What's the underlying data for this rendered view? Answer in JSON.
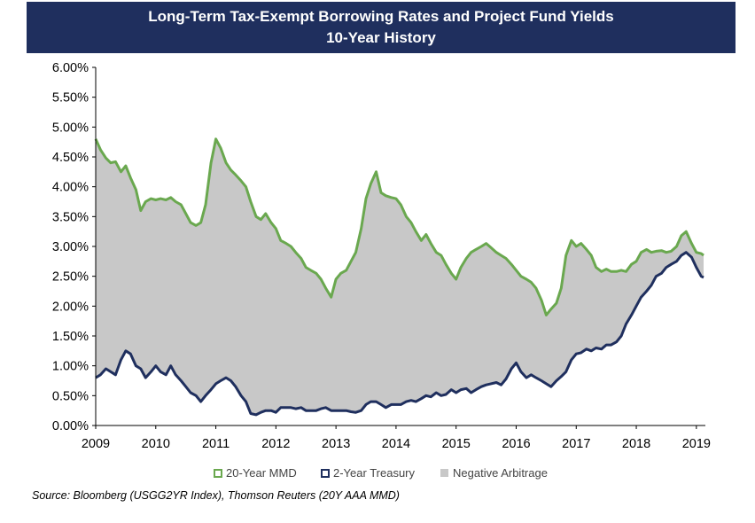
{
  "title_line1": "Long-Term Tax-Exempt Borrowing Rates and Project Fund Yields",
  "title_line2": "10-Year History",
  "source": "Source: Bloomberg (USGG2YR Index), Thomson Reuters (20Y AAA MMD)",
  "colors": {
    "title_bg": "#1f2f5e",
    "mmd": "#6aa84f",
    "treasury": "#1f2f5e",
    "negative_arbitrage": "#c8c8c8"
  },
  "chart_data": {
    "type": "area",
    "title": "Long-Term Tax-Exempt Borrowing Rates and Project Fund Yields",
    "subtitle": "10-Year History",
    "xlabel": "",
    "ylabel": "",
    "xlim": [
      2009.0,
      2019.15
    ],
    "ylim": [
      0,
      0.06
    ],
    "x_ticks": [
      "2009",
      "2010",
      "2011",
      "2012",
      "2013",
      "2014",
      "2015",
      "2016",
      "2017",
      "2018",
      "2019"
    ],
    "y_ticks": [
      "0.00%",
      "0.50%",
      "1.00%",
      "1.50%",
      "2.00%",
      "2.50%",
      "3.00%",
      "3.50%",
      "4.00%",
      "4.50%",
      "5.00%",
      "5.50%",
      "6.00%"
    ],
    "legend_position": "bottom",
    "grid": false,
    "legend": [
      {
        "name": "20-Year MMD",
        "color": "#6aa84f",
        "style": "outline"
      },
      {
        "name": "2-Year Treasury",
        "color": "#1f2f5e",
        "style": "outline"
      },
      {
        "name": "Negative Arbitrage",
        "color": "#c8c8c8",
        "style": "fill"
      }
    ],
    "x": [
      2009.0,
      2009.08,
      2009.17,
      2009.25,
      2009.33,
      2009.42,
      2009.5,
      2009.58,
      2009.67,
      2009.75,
      2009.83,
      2009.92,
      2010.0,
      2010.08,
      2010.17,
      2010.25,
      2010.33,
      2010.42,
      2010.5,
      2010.58,
      2010.67,
      2010.75,
      2010.83,
      2010.92,
      2011.0,
      2011.08,
      2011.17,
      2011.25,
      2011.33,
      2011.42,
      2011.5,
      2011.58,
      2011.67,
      2011.75,
      2011.83,
      2011.92,
      2012.0,
      2012.08,
      2012.17,
      2012.25,
      2012.33,
      2012.42,
      2012.5,
      2012.58,
      2012.67,
      2012.75,
      2012.83,
      2012.92,
      2013.0,
      2013.08,
      2013.17,
      2013.25,
      2013.33,
      2013.42,
      2013.5,
      2013.58,
      2013.67,
      2013.75,
      2013.83,
      2013.92,
      2014.0,
      2014.08,
      2014.17,
      2014.25,
      2014.33,
      2014.42,
      2014.5,
      2014.58,
      2014.67,
      2014.75,
      2014.83,
      2014.92,
      2015.0,
      2015.08,
      2015.17,
      2015.25,
      2015.33,
      2015.42,
      2015.5,
      2015.58,
      2015.67,
      2015.75,
      2015.83,
      2015.92,
      2016.0,
      2016.08,
      2016.17,
      2016.25,
      2016.33,
      2016.42,
      2016.5,
      2016.58,
      2016.67,
      2016.75,
      2016.83,
      2016.92,
      2017.0,
      2017.08,
      2017.17,
      2017.25,
      2017.33,
      2017.42,
      2017.5,
      2017.58,
      2017.67,
      2017.75,
      2017.83,
      2017.92,
      2018.0,
      2018.08,
      2018.17,
      2018.25,
      2018.33,
      2018.42,
      2018.5,
      2018.58,
      2018.67,
      2018.75,
      2018.83,
      2018.92,
      2019.0,
      2019.08,
      2019.12
    ],
    "series": [
      {
        "name": "20-Year MMD",
        "color": "#6aa84f",
        "values": [
          0.048,
          0.0462,
          0.0448,
          0.044,
          0.0442,
          0.0425,
          0.0435,
          0.0415,
          0.0395,
          0.036,
          0.0375,
          0.038,
          0.0378,
          0.038,
          0.0378,
          0.0382,
          0.0375,
          0.037,
          0.0355,
          0.034,
          0.0335,
          0.034,
          0.037,
          0.044,
          0.048,
          0.0465,
          0.044,
          0.0428,
          0.042,
          0.041,
          0.04,
          0.0375,
          0.035,
          0.0345,
          0.0355,
          0.034,
          0.033,
          0.031,
          0.0305,
          0.03,
          0.029,
          0.028,
          0.0265,
          0.026,
          0.0255,
          0.0245,
          0.023,
          0.0215,
          0.0245,
          0.0255,
          0.026,
          0.0275,
          0.029,
          0.033,
          0.038,
          0.0405,
          0.0425,
          0.039,
          0.0385,
          0.0382,
          0.038,
          0.037,
          0.035,
          0.034,
          0.0325,
          0.031,
          0.032,
          0.0305,
          0.029,
          0.0285,
          0.027,
          0.0255,
          0.0245,
          0.0265,
          0.028,
          0.029,
          0.0295,
          0.03,
          0.0305,
          0.0298,
          0.029,
          0.0285,
          0.028,
          0.027,
          0.026,
          0.025,
          0.0245,
          0.024,
          0.023,
          0.021,
          0.0185,
          0.0195,
          0.0205,
          0.023,
          0.0285,
          0.031,
          0.03,
          0.0305,
          0.0295,
          0.0285,
          0.0265,
          0.0258,
          0.0262,
          0.0258,
          0.0258,
          0.026,
          0.0258,
          0.027,
          0.0275,
          0.029,
          0.0295,
          0.029,
          0.0292,
          0.0293,
          0.029,
          0.0292,
          0.03,
          0.0318,
          0.0325,
          0.0305,
          0.029,
          0.0288,
          0.0285
        ]
      },
      {
        "name": "2-Year Treasury",
        "color": "#1f2f5e",
        "values": [
          0.008,
          0.0085,
          0.0095,
          0.009,
          0.0085,
          0.011,
          0.0125,
          0.012,
          0.01,
          0.0095,
          0.008,
          0.009,
          0.01,
          0.009,
          0.0085,
          0.01,
          0.0085,
          0.0075,
          0.0065,
          0.0055,
          0.005,
          0.004,
          0.005,
          0.006,
          0.007,
          0.0075,
          0.008,
          0.0075,
          0.0065,
          0.005,
          0.004,
          0.002,
          0.0018,
          0.0022,
          0.0025,
          0.0025,
          0.0022,
          0.003,
          0.003,
          0.003,
          0.0028,
          0.003,
          0.0025,
          0.0025,
          0.0025,
          0.0028,
          0.003,
          0.0025,
          0.0025,
          0.0025,
          0.0025,
          0.0023,
          0.0022,
          0.0025,
          0.0035,
          0.004,
          0.004,
          0.0035,
          0.003,
          0.0035,
          0.0035,
          0.0035,
          0.004,
          0.0042,
          0.004,
          0.0045,
          0.005,
          0.0048,
          0.0055,
          0.005,
          0.0052,
          0.006,
          0.0055,
          0.006,
          0.0062,
          0.0055,
          0.006,
          0.0065,
          0.0068,
          0.007,
          0.0072,
          0.0068,
          0.0078,
          0.0095,
          0.0105,
          0.009,
          0.008,
          0.0085,
          0.008,
          0.0075,
          0.007,
          0.0065,
          0.0075,
          0.0082,
          0.009,
          0.011,
          0.012,
          0.0122,
          0.0128,
          0.0125,
          0.013,
          0.0128,
          0.0135,
          0.0135,
          0.014,
          0.015,
          0.017,
          0.0185,
          0.02,
          0.0215,
          0.0225,
          0.0235,
          0.025,
          0.0255,
          0.0265,
          0.027,
          0.0275,
          0.0285,
          0.029,
          0.0282,
          0.0265,
          0.025,
          0.0248
        ]
      }
    ]
  }
}
